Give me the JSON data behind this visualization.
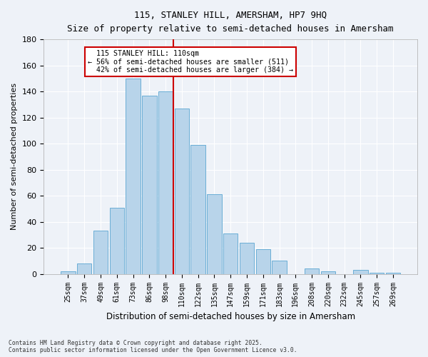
{
  "title": "115, STANLEY HILL, AMERSHAM, HP7 9HQ",
  "subtitle": "Size of property relative to semi-detached houses in Amersham",
  "xlabel": "Distribution of semi-detached houses by size in Amersham",
  "ylabel": "Number of semi-detached properties",
  "categories": [
    "25sqm",
    "37sqm",
    "49sqm",
    "61sqm",
    "73sqm",
    "86sqm",
    "98sqm",
    "110sqm",
    "122sqm",
    "135sqm",
    "147sqm",
    "159sqm",
    "171sqm",
    "183sqm",
    "196sqm",
    "208sqm",
    "220sqm",
    "232sqm",
    "245sqm",
    "257sqm",
    "269sqm"
  ],
  "values": [
    2,
    8,
    33,
    51,
    150,
    137,
    140,
    127,
    99,
    61,
    31,
    24,
    19,
    10,
    0,
    4,
    2,
    0,
    3,
    1,
    1
  ],
  "bar_color": "#b8d4ea",
  "bar_edge_color": "#6aaed6",
  "highlight_line_index": 7,
  "property_label": "115 STANLEY HILL: 110sqm",
  "pct_smaller": 56,
  "count_smaller": 511,
  "pct_larger": 42,
  "count_larger": 384,
  "ylim": [
    0,
    180
  ],
  "yticks": [
    0,
    20,
    40,
    60,
    80,
    100,
    120,
    140,
    160,
    180
  ],
  "background_color": "#eef2f8",
  "grid_color": "#ffffff",
  "annotation_box_color": "#ffffff",
  "annotation_box_edge": "#cc0000",
  "footnote1": "Contains HM Land Registry data © Crown copyright and database right 2025.",
  "footnote2": "Contains public sector information licensed under the Open Government Licence v3.0."
}
